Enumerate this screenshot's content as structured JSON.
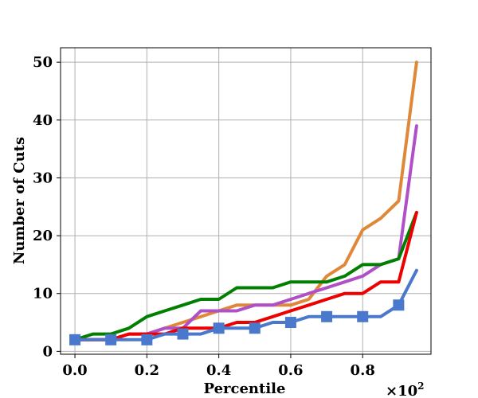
{
  "chart_data": {
    "type": "line",
    "title": "",
    "xlabel": "Percentile",
    "ylabel": "Number of Cuts",
    "x_multiplier": "×10",
    "x_multiplier_exp": "2",
    "xlim": [
      -0.04,
      0.99
    ],
    "ylim": [
      -0.5,
      52.5
    ],
    "x_ticks": [
      0.0,
      0.2,
      0.4,
      0.6,
      0.8
    ],
    "x_tick_labels": [
      "0.0",
      "0.2",
      "0.4",
      "0.6",
      "0.8"
    ],
    "y_ticks": [
      0,
      10,
      20,
      30,
      40,
      50
    ],
    "y_tick_labels": [
      "0",
      "10",
      "20",
      "30",
      "40",
      "50"
    ],
    "grid": true,
    "x": [
      0.0,
      0.05,
      0.1,
      0.15,
      0.2,
      0.25,
      0.3,
      0.35,
      0.4,
      0.45,
      0.5,
      0.55,
      0.6,
      0.65,
      0.7,
      0.75,
      0.8,
      0.85,
      0.9,
      0.95
    ],
    "series": [
      {
        "name": "orange",
        "color": "#e0883a",
        "marker": "none",
        "values": [
          2,
          2,
          2,
          3,
          3,
          4,
          5,
          6,
          7,
          8,
          8,
          8,
          8,
          9,
          13,
          15,
          21,
          23,
          26,
          50
        ]
      },
      {
        "name": "purple",
        "color": "#b050c8",
        "marker": "none",
        "values": [
          2,
          2,
          2,
          3,
          3,
          4,
          4,
          7,
          7,
          7,
          8,
          8,
          9,
          10,
          11,
          12,
          13,
          15,
          16,
          39
        ]
      },
      {
        "name": "green",
        "color": "#007f00",
        "marker": "none",
        "values": [
          2,
          3,
          3,
          4,
          6,
          7,
          8,
          9,
          9,
          11,
          11,
          11,
          12,
          12,
          12,
          13,
          15,
          15,
          16,
          24
        ]
      },
      {
        "name": "red",
        "color": "#ee0000",
        "marker": "none",
        "values": [
          2,
          2,
          2,
          3,
          3,
          3,
          4,
          4,
          4,
          5,
          5,
          6,
          7,
          8,
          9,
          10,
          10,
          12,
          12,
          24
        ]
      },
      {
        "name": "blue",
        "color": "#4a78cc",
        "marker": "square",
        "marker_every": 2,
        "values": [
          2,
          2,
          2,
          2,
          2,
          3,
          3,
          3,
          4,
          4,
          4,
          5,
          5,
          6,
          6,
          6,
          6,
          6,
          8,
          14
        ]
      }
    ]
  }
}
